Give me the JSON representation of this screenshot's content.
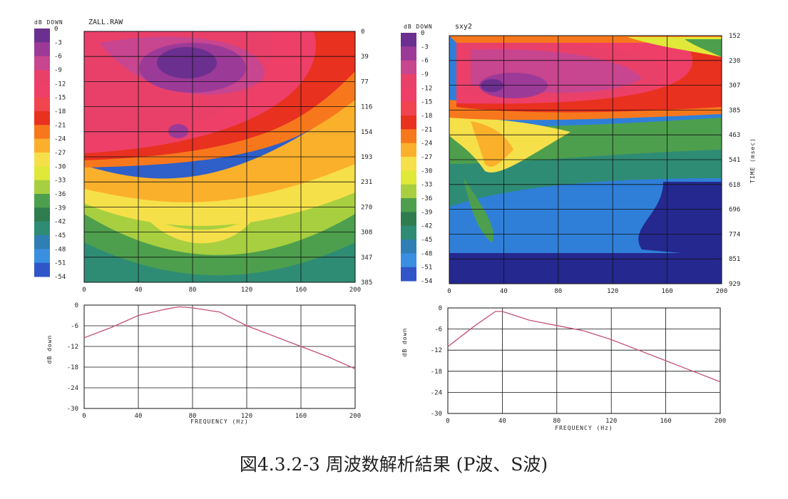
{
  "caption": "図4.3.2-3 周波数解析結果 (P波、S波)",
  "chart_data": [
    {
      "type": "heatmap",
      "title": "ZALL.RAW",
      "colorbar_title": "dB DOWN",
      "colorbar_ticks": [
        "0",
        "-3",
        "-6",
        "-9",
        "-12",
        "-15",
        "-18",
        "-21",
        "-24",
        "-27",
        "-30",
        "-33",
        "-36",
        "-39",
        "-42",
        "-45",
        "-48",
        "-51",
        "-54"
      ],
      "colorbar_colors": [
        "#6b2f8f",
        "#9c3a98",
        "#c8458f",
        "#e9406a",
        "#ee3f68",
        "#f0444f",
        "#e8311f",
        "#f7781c",
        "#fbb02c",
        "#f6e04a",
        "#e0e83a",
        "#a8cf3f",
        "#4d9f4d",
        "#2f7d4f",
        "#2f8c74",
        "#2f7fb5",
        "#3a8fe0",
        "#2f55c8",
        "#25288e"
      ],
      "xlabel": "",
      "x_ticks": [
        "0",
        "40",
        "80",
        "120",
        "160",
        "200"
      ],
      "xlim": [
        0,
        200
      ],
      "ylabel": "",
      "y_ticks": [
        "0",
        "39",
        "77",
        "116",
        "154",
        "193",
        "231",
        "270",
        "308",
        "347",
        "385"
      ],
      "ylim": [
        0,
        385
      ]
    },
    {
      "type": "heatmap",
      "title": "sxy2",
      "colorbar_title": "dB DOWN",
      "colorbar_ticks": [
        "0",
        "-3",
        "-6",
        "-9",
        "-12",
        "-15",
        "-18",
        "-21",
        "-24",
        "-27",
        "-30",
        "-33",
        "-36",
        "-39",
        "-42",
        "-45",
        "-48",
        "-51",
        "-54"
      ],
      "xlabel": "",
      "x_ticks": [
        "0",
        "40",
        "80",
        "120",
        "160",
        "200"
      ],
      "xlim": [
        0,
        200
      ],
      "ylabel": "TIME (msec)",
      "y_ticks": [
        "152",
        "230",
        "307",
        "385",
        "463",
        "541",
        "618",
        "696",
        "774",
        "851",
        "929"
      ],
      "ylim": [
        152,
        929
      ]
    },
    {
      "type": "line",
      "title": "",
      "xlabel": "FREQUENCY (Hz)",
      "ylabel": "dB down",
      "x_ticks": [
        "0",
        "40",
        "80",
        "120",
        "160",
        "200"
      ],
      "y_ticks": [
        "0",
        "-6",
        "-12",
        "-18",
        "-24",
        "-30"
      ],
      "xlim": [
        0,
        200
      ],
      "ylim": [
        -30,
        0
      ],
      "series": [
        {
          "x": [
            0,
            20,
            40,
            60,
            70,
            80,
            100,
            120,
            140,
            160,
            180,
            200
          ],
          "values": [
            -9.5,
            -6.5,
            -3,
            -1.2,
            -0.5,
            -0.8,
            -2,
            -6,
            -9,
            -12,
            -15,
            -18.5
          ]
        }
      ]
    },
    {
      "type": "line",
      "title": "",
      "xlabel": "FREQUENCY (Hz)",
      "ylabel": "dB down",
      "x_ticks": [
        "0",
        "40",
        "80",
        "120",
        "160",
        "200"
      ],
      "y_ticks": [
        "0",
        "-6",
        "-12",
        "-18",
        "-24",
        "-30"
      ],
      "xlim": [
        0,
        200
      ],
      "ylim": [
        -30,
        0
      ],
      "series": [
        {
          "x": [
            0,
            20,
            35,
            40,
            60,
            80,
            100,
            120,
            140,
            160,
            180,
            200
          ],
          "values": [
            -11,
            -5,
            -1,
            -1,
            -3.5,
            -5,
            -6.5,
            -9,
            -12,
            -15,
            -18,
            -21
          ]
        }
      ]
    }
  ]
}
